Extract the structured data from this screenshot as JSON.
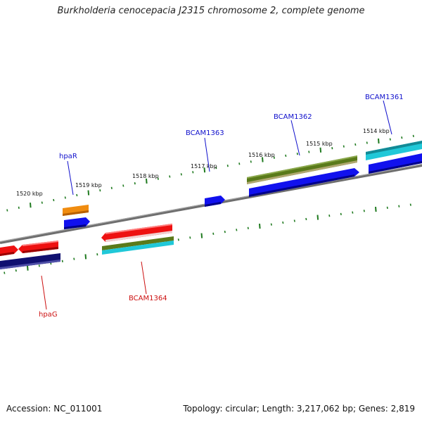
{
  "title": "Burkholderia cenocepacia J2315 chromosome 2, complete genome",
  "accession_text": "Accession: NC_011001",
  "summary_text": "Topology: circular; Length: 3,217,062 bp; Genes: 2,819",
  "colors": {
    "backbone": "#8a8a8a",
    "tick": "#1f7a1f",
    "label_forward": "#1010cc",
    "label_reverse": "#cc1010",
    "red": "#ee1111",
    "blue": "#1111ee",
    "navy": "#101070",
    "orange": "#f08c10",
    "olive": "#5a7a1a",
    "cyan": "#20c8d8"
  },
  "tick_labels": [
    "1520 kbp",
    "1519 kbp",
    "1518 kbp",
    "1517 kbp",
    "1516 kbp",
    "1515 kbp",
    "1514 kbp"
  ],
  "gene_labels": [
    {
      "text": "hpaR",
      "strand": "forward"
    },
    {
      "text": "BCAM1363",
      "strand": "forward"
    },
    {
      "text": "BCAM1362",
      "strand": "forward"
    },
    {
      "text": "BCAM1361",
      "strand": "forward"
    },
    {
      "text": "hpaG",
      "strand": "reverse"
    },
    {
      "text": "BCAM1364",
      "strand": "reverse"
    }
  ]
}
